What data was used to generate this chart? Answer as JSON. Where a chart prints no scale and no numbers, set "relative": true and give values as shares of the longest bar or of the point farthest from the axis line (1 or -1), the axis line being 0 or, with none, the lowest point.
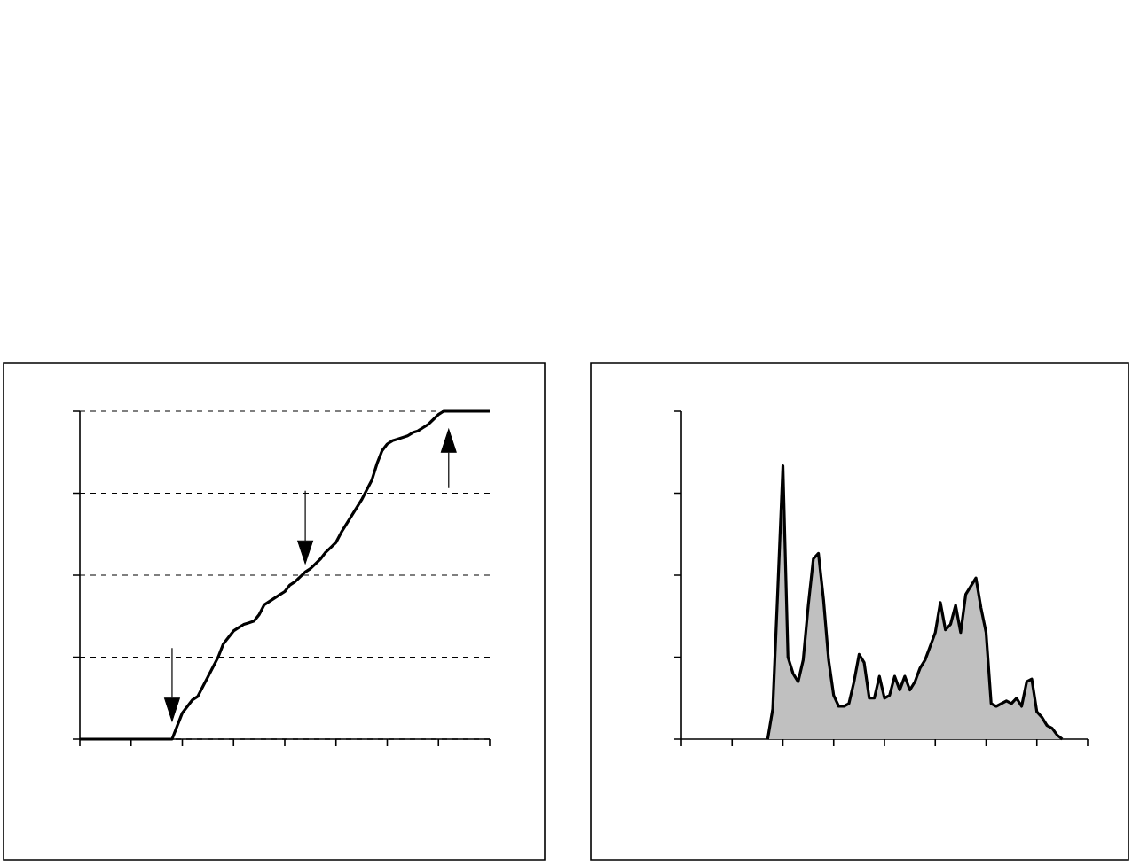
{
  "chart_data": [
    {
      "type": "line",
      "relative": true,
      "grid": "y",
      "line_style": "solid",
      "marker": "none",
      "tick_labels": false,
      "color": "#000000",
      "categories": [
        null,
        null,
        null,
        null,
        null,
        null,
        null,
        null,
        null,
        null,
        null,
        null,
        null,
        null,
        null,
        null,
        null,
        null,
        null,
        null,
        null,
        null,
        null,
        null,
        null,
        null,
        null,
        null,
        null,
        null,
        null,
        null,
        null,
        null,
        null,
        null,
        null,
        null,
        null,
        null,
        null,
        null,
        null,
        null,
        null,
        null,
        null,
        null,
        null,
        null,
        null,
        null,
        null,
        null,
        null,
        null,
        null,
        null,
        null,
        null,
        null,
        null,
        null,
        null,
        null,
        null,
        null,
        null,
        null,
        null,
        null,
        null,
        null,
        null,
        null,
        null,
        null,
        null,
        null,
        null,
        null
      ],
      "values": [
        0,
        0,
        0,
        0,
        0,
        0,
        0,
        0,
        0,
        0,
        0,
        0,
        0,
        0,
        0,
        0,
        0,
        0,
        0,
        0.04,
        0.08,
        0.1,
        0.12,
        0.13,
        0.16,
        0.19,
        0.22,
        0.25,
        0.29,
        0.31,
        0.33,
        0.34,
        0.35,
        0.355,
        0.36,
        0.38,
        0.41,
        0.42,
        0.43,
        0.44,
        0.45,
        0.47,
        0.48,
        0.495,
        0.51,
        0.52,
        0.535,
        0.55,
        0.57,
        0.585,
        0.6,
        0.63,
        0.655,
        0.68,
        0.705,
        0.73,
        0.76,
        0.79,
        0.84,
        0.88,
        0.9,
        0.91,
        0.915,
        0.92,
        0.925,
        0.935,
        0.94,
        0.95,
        0.96,
        0.975,
        0.99,
        1,
        1,
        1,
        1,
        1,
        1,
        1,
        1,
        1,
        1
      ]
    },
    {
      "type": "area",
      "relative": true,
      "marker": "none",
      "tick_labels": false,
      "color": "#c0c0c0",
      "categories": [
        null,
        null,
        null,
        null,
        null,
        null,
        null,
        null,
        null,
        null,
        null,
        null,
        null,
        null,
        null,
        null,
        null,
        null,
        null,
        null,
        null,
        null,
        null,
        null,
        null,
        null,
        null,
        null,
        null,
        null,
        null,
        null,
        null,
        null,
        null,
        null,
        null,
        null,
        null,
        null,
        null,
        null,
        null,
        null,
        null,
        null,
        null,
        null,
        null,
        null,
        null,
        null,
        null,
        null,
        null,
        null,
        null,
        null,
        null,
        null,
        null,
        null,
        null,
        null,
        null,
        null,
        null,
        null,
        null,
        null,
        null,
        null,
        null,
        null,
        null,
        null,
        null,
        null,
        null,
        null,
        null
      ],
      "values": [
        null,
        null,
        null,
        null,
        null,
        null,
        null,
        null,
        null,
        null,
        null,
        null,
        null,
        null,
        null,
        null,
        null,
        0,
        0.11,
        0.55,
        1.0,
        0.3,
        0.24,
        0.21,
        0.29,
        0.49,
        0.66,
        0.68,
        0.51,
        0.29,
        0.16,
        0.12,
        0.12,
        0.13,
        0.21,
        0.31,
        0.28,
        0.15,
        0.15,
        0.23,
        0.15,
        0.16,
        0.23,
        0.18,
        0.23,
        0.18,
        0.21,
        0.26,
        0.29,
        0.34,
        0.39,
        0.5,
        0.4,
        0.42,
        0.49,
        0.39,
        0.53,
        0.56,
        0.59,
        0.48,
        0.39,
        0.13,
        0.12,
        0.13,
        0.14,
        0.13,
        0.15,
        0.12,
        0.21,
        0.22,
        0.1,
        0.08,
        0.05,
        0.04,
        0.015,
        0,
        null,
        null,
        null,
        null,
        null
      ]
    }
  ]
}
